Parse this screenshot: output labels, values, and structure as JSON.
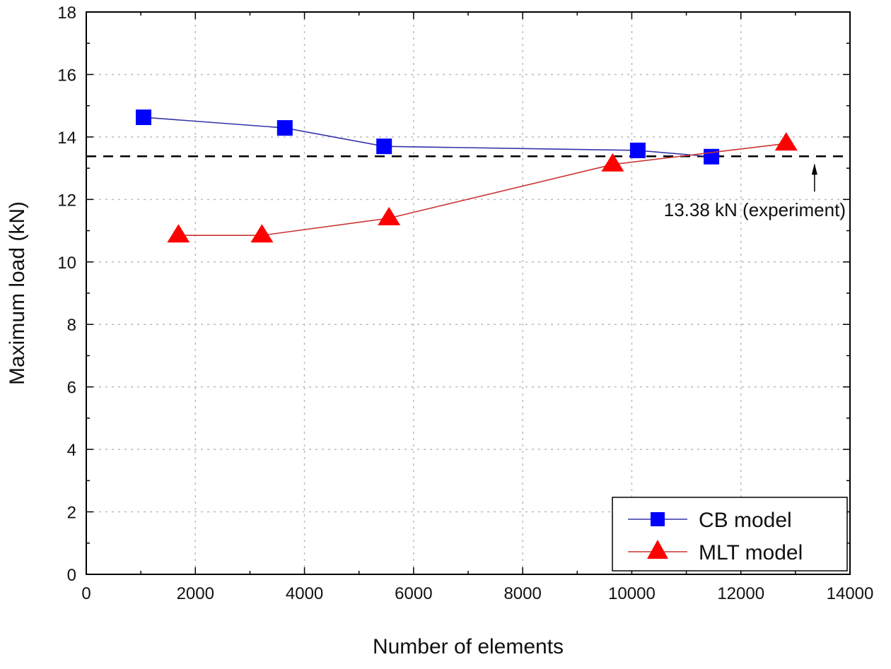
{
  "chart_data": {
    "type": "line",
    "title": "",
    "xlabel": "Number of elements",
    "ylabel": "Maximum load (kN)",
    "xlim": [
      0,
      14000
    ],
    "ylim": [
      0,
      18
    ],
    "xticks": [
      0,
      2000,
      4000,
      6000,
      8000,
      10000,
      12000,
      14000
    ],
    "yticks": [
      0,
      2,
      4,
      6,
      8,
      10,
      12,
      14,
      16,
      18
    ],
    "grid": true,
    "legend_position": "bottom-right",
    "series": [
      {
        "name": "CB model",
        "marker": "square",
        "color": "#0000ff",
        "line_color": "#3333aa",
        "x": [
          1050,
          3640,
          5460,
          10110,
          11460
        ],
        "y": [
          14.63,
          14.29,
          13.7,
          13.57,
          13.37
        ]
      },
      {
        "name": "MLT model",
        "marker": "triangle",
        "color": "#ff0000",
        "line_color": "#cc3333",
        "x": [
          1690,
          3220,
          5550,
          9650,
          12830
        ],
        "y": [
          10.85,
          10.85,
          11.4,
          13.12,
          13.79
        ]
      }
    ],
    "reference_line": {
      "y": 13.38,
      "style": "dashed",
      "color": "#000000"
    },
    "annotation": {
      "text": "13.38 kN (experiment)",
      "arrow_x": 13350
    }
  }
}
